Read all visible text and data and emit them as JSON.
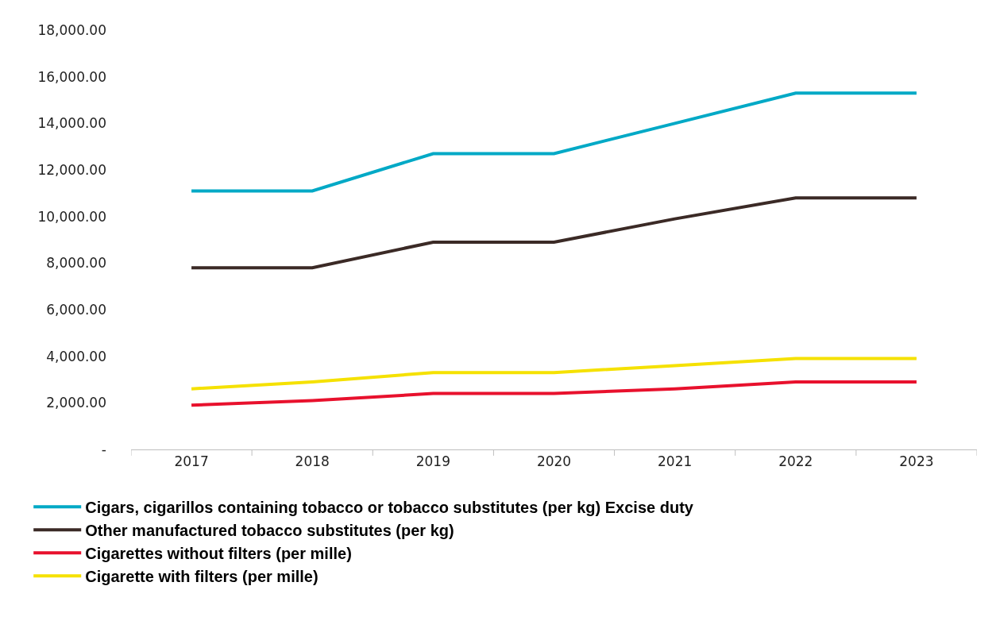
{
  "chart_data": {
    "type": "line",
    "categories": [
      "2017",
      "2018",
      "2019",
      "2020",
      "2021",
      "2022",
      "2023"
    ],
    "series": [
      {
        "name": "Cigars, cigarillos containing tobacco or tobacco substitutes (per kg) Excise duty",
        "color": "#00a9c6",
        "values": [
          11100,
          11100,
          12700,
          12700,
          14000,
          15300,
          15300
        ]
      },
      {
        "name": "Other manufactured tobacco substitutes (per kg)",
        "color": "#3b2a26",
        "values": [
          7800,
          7800,
          8900,
          8900,
          9900,
          10800,
          10800
        ]
      },
      {
        "name": "Cigarettes without filters (per mille)",
        "color": "#e8112d",
        "values": [
          1900,
          2100,
          2400,
          2400,
          2600,
          2900,
          2900
        ]
      },
      {
        "name": "Cigarette with filters (per mille)",
        "color": "#f5e100",
        "values": [
          2600,
          2900,
          3300,
          3300,
          3600,
          3900,
          3900
        ]
      }
    ],
    "ylim": [
      0,
      18000
    ],
    "yticks": [
      {
        "value": 0,
        "label": "-"
      },
      {
        "value": 2000,
        "label": "2,000.00"
      },
      {
        "value": 4000,
        "label": "4,000.00"
      },
      {
        "value": 6000,
        "label": "6,000.00"
      },
      {
        "value": 8000,
        "label": "8,000.00"
      },
      {
        "value": 10000,
        "label": "10,000.00"
      },
      {
        "value": 12000,
        "label": "12,000.00"
      },
      {
        "value": 14000,
        "label": "14,000.00"
      },
      {
        "value": 16000,
        "label": "16,000.00"
      },
      {
        "value": 18000,
        "label": "18,000.00"
      }
    ],
    "legend": "bottom",
    "marker": "none",
    "line_style": "solid"
  }
}
